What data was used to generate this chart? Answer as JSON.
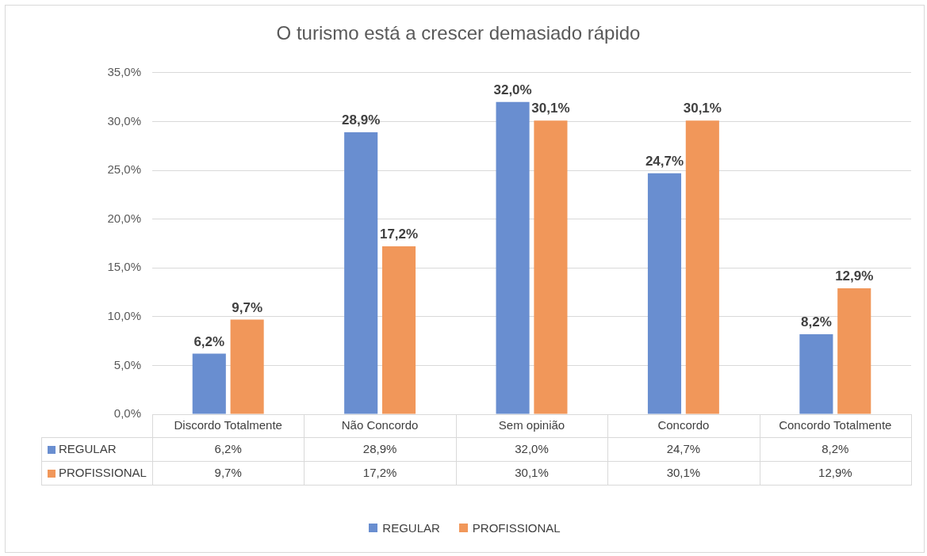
{
  "chart_data": {
    "type": "bar",
    "title": "O turismo está a crescer demasiado rápido",
    "categories": [
      "Discordo Totalmente",
      "Não Concordo",
      "Sem opinião",
      "Concordo",
      "Concordo Totalmente"
    ],
    "series": [
      {
        "name": "REGULAR",
        "color": "#698ed0",
        "values": [
          6.2,
          28.9,
          32.0,
          24.7,
          8.2
        ],
        "value_labels": [
          "6,2%",
          "28,9%",
          "32,0%",
          "24,7%",
          "8,2%"
        ]
      },
      {
        "name": "PROFISSIONAL",
        "color": "#f1975a",
        "values": [
          9.7,
          17.2,
          30.1,
          30.1,
          12.9
        ],
        "value_labels": [
          "9,7%",
          "17,2%",
          "30,1%",
          "30,1%",
          "12,9%"
        ]
      }
    ],
    "ylim": [
      0,
      35
    ],
    "yticks": [
      {
        "value": 0,
        "label": "0,0%"
      },
      {
        "value": 5,
        "label": "5,0%"
      },
      {
        "value": 10,
        "label": "10,0%"
      },
      {
        "value": 15,
        "label": "15,0%"
      },
      {
        "value": 20,
        "label": "20,0%"
      },
      {
        "value": 25,
        "label": "25,0%"
      },
      {
        "value": 30,
        "label": "30,0%"
      },
      {
        "value": 35,
        "label": "35,0%"
      }
    ],
    "grid": "y",
    "legend": "bottom"
  }
}
